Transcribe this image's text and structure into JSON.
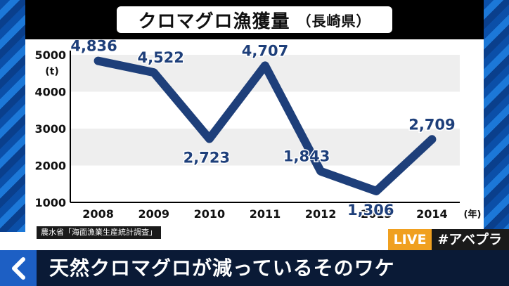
{
  "title": {
    "main": "クロマグロ漁獲量",
    "sub": "（長崎県）"
  },
  "chart_data": {
    "type": "line",
    "title": "クロマグロ漁獲量（長崎県）",
    "x": [
      "2008",
      "2009",
      "2010",
      "2011",
      "2012",
      "2013",
      "2014"
    ],
    "xunit": "(年)",
    "y_tick_labels": [
      "5000",
      "4000",
      "3000",
      "2000",
      "1000"
    ],
    "yunit": "(t)",
    "ylim": [
      1000,
      5000
    ],
    "series": [
      {
        "values": [
          4836,
          4522,
          2723,
          4707,
          1843,
          1306,
          2709
        ],
        "labels": [
          "4,836",
          "4,522",
          "2,723",
          "4,707",
          "1,843",
          "1,306",
          "2,709"
        ]
      }
    ],
    "colors": {
      "line": "#1e3f7a",
      "band": "#eeeeee"
    },
    "grid": "alternating horizontal bands"
  },
  "source": "農水省「海面漁業生産統計調査」",
  "badge": {
    "live": "LIVE",
    "tag": "#アベプラ"
  },
  "headline": "天然クロマグロが減っているそのワケ",
  "icons": {
    "back": "chevron-left-icon"
  }
}
